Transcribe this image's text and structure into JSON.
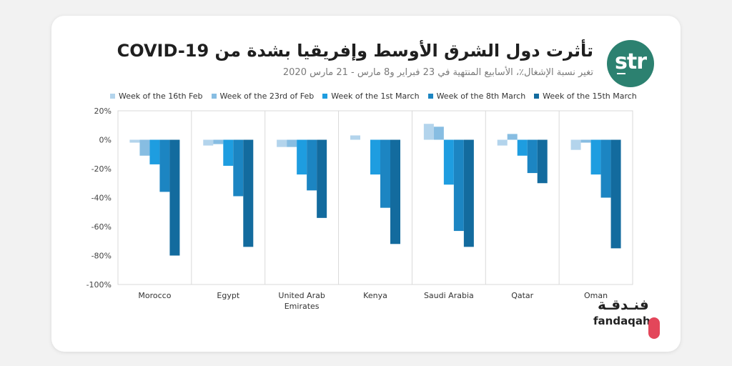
{
  "title": "تأثرت دول الشرق الأوسط وإفريقيا بشدة من COVID-19",
  "subtitle": "تغير نسبة الإشغال٪، الأسابيع المنتهية في 23 فبراير و8 مارس - 21 مارس 2020",
  "brand": {
    "str_logo_text": "str",
    "fandaqah_arabic": "فنـدقـة",
    "fandaqah_latin": "fandaqah",
    "logo_color": "#2c8170",
    "fandaqah_color": "#e3465a"
  },
  "chart_data": {
    "type": "bar",
    "categories": [
      "Morocco",
      "Egypt",
      "United Arab Emirates",
      "Kenya",
      "Saudi Arabia",
      "Qatar",
      "Oman"
    ],
    "category_lines": [
      [
        "Morocco"
      ],
      [
        "Egypt"
      ],
      [
        "United Arab",
        "Emirates"
      ],
      [
        "Kenya"
      ],
      [
        "Saudi Arabia"
      ],
      [
        "Qatar"
      ],
      [
        "Oman"
      ]
    ],
    "series": [
      {
        "name": "Week of the 16th Feb",
        "color": "#b3d4ec",
        "values": [
          -2,
          -4,
          -5,
          3,
          11,
          -4,
          -7
        ]
      },
      {
        "name": "Week of the 23rd of Feb",
        "color": "#87bde2",
        "values": [
          -11,
          -3,
          -5,
          0,
          9,
          4,
          -2
        ]
      },
      {
        "name": "Week of the 1st March",
        "color": "#1e9de0",
        "values": [
          -17,
          -18,
          -24,
          -24,
          -31,
          -11,
          -24
        ]
      },
      {
        "name": "Week of the 8th March",
        "color": "#1c85c2",
        "values": [
          -36,
          -39,
          -35,
          -47,
          -63,
          -23,
          -40
        ]
      },
      {
        "name": "Week of the 15th March",
        "color": "#136b9e",
        "values": [
          -80,
          -74,
          -54,
          -72,
          -74,
          -30,
          -75
        ]
      }
    ],
    "y_ticks": [
      "20%",
      "0%",
      "-20%",
      "-40%",
      "-60%",
      "-80%",
      "-100%"
    ],
    "ylim": [
      -100,
      20
    ],
    "xlabel": "",
    "ylabel": "",
    "legend_position": "top"
  }
}
